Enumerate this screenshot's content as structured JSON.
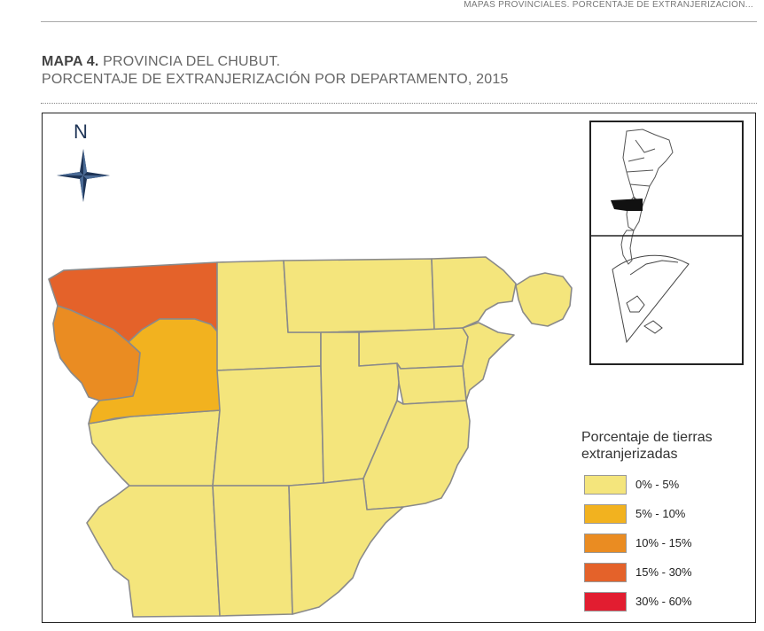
{
  "page_header": {
    "running_title": "MAPAS PROVINCIALES. PORCENTAJE DE EXTRANJERIZACIÓN..."
  },
  "map": {
    "title_lead": "MAPA 4.",
    "title_rest": " PROVINCIA DEL CHUBUT.",
    "subtitle": "PORCENTAJE DE EXTRANJERIZACIÓN POR DEPARTAMENTO, 2015",
    "north_label": "N",
    "colors": {
      "class_0_5": "#f4e57c",
      "class_5_10": "#f2b21f",
      "class_10_15": "#ea8c22",
      "class_15_30": "#e4622a",
      "class_30_60": "#e21d30",
      "border": "#8a8a8a",
      "compass": "#1e3456"
    }
  },
  "legend": {
    "title_line1": "Porcentaje de tierras",
    "title_line2": "extranjerizadas",
    "items": [
      {
        "label": "0% - 5%",
        "color": "#f4e57c"
      },
      {
        "label": "5% - 10%",
        "color": "#f2b21f"
      },
      {
        "label": "10% - 15%",
        "color": "#ea8c22"
      },
      {
        "label": "15% - 30%",
        "color": "#e4622a"
      },
      {
        "label": "30% - 60%",
        "color": "#e21d30"
      }
    ]
  }
}
